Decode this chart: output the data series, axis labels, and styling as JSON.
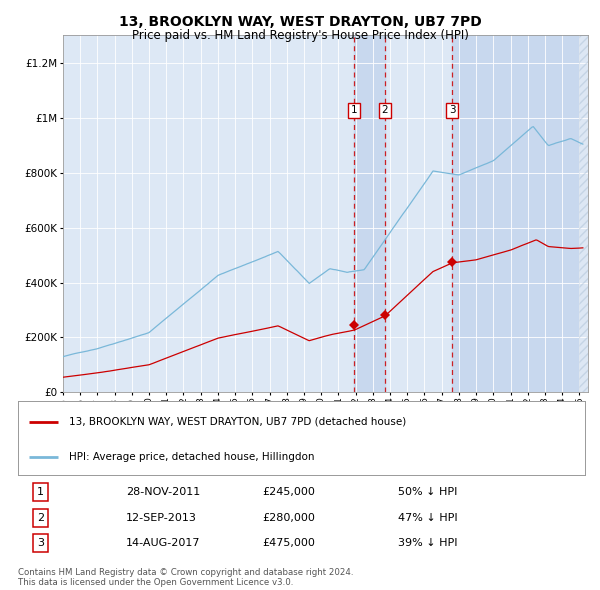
{
  "title": "13, BROOKLYN WAY, WEST DRAYTON, UB7 7PD",
  "subtitle": "Price paid vs. HM Land Registry's House Price Index (HPI)",
  "xlim": [
    1995.0,
    2025.5
  ],
  "ylim": [
    0,
    1300000
  ],
  "yticks": [
    0,
    200000,
    400000,
    600000,
    800000,
    1000000,
    1200000
  ],
  "ytick_labels": [
    "£0",
    "£200K",
    "£400K",
    "£600K",
    "£800K",
    "£1M",
    "£1.2M"
  ],
  "transactions": [
    {
      "num": 1,
      "date": "28-NOV-2011",
      "year": 2011.91,
      "price": 245000,
      "label": "50% ↓ HPI"
    },
    {
      "num": 2,
      "date": "12-SEP-2013",
      "year": 2013.71,
      "price": 280000,
      "label": "47% ↓ HPI"
    },
    {
      "num": 3,
      "date": "14-AUG-2017",
      "year": 2017.62,
      "price": 475000,
      "label": "39% ↓ HPI"
    }
  ],
  "legend_line1": "13, BROOKLYN WAY, WEST DRAYTON, UB7 7PD (detached house)",
  "legend_line2": "HPI: Average price, detached house, Hillingdon",
  "footer": "Contains HM Land Registry data © Crown copyright and database right 2024.\nThis data is licensed under the Open Government Licence v3.0.",
  "hpi_color": "#7ab8d9",
  "price_color": "#cc0000",
  "plot_bg_color": "#dde8f5",
  "shade_color": "#c8d8ee"
}
